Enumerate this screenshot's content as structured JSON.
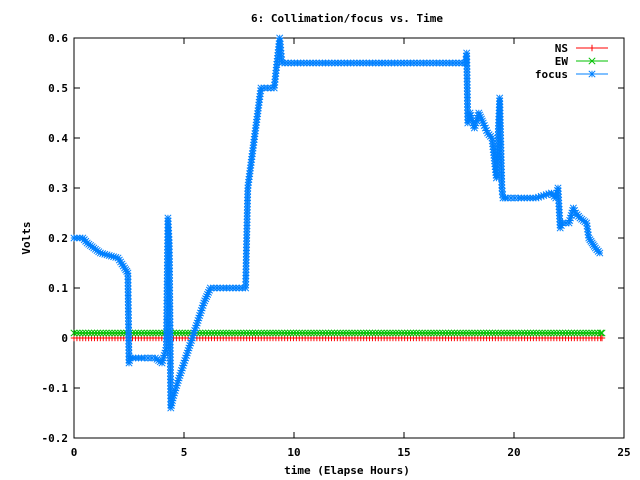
{
  "chart_data": {
    "type": "line",
    "title": "6: Collimation/focus vs. Time",
    "xlabel": "time (Elapse Hours)",
    "ylabel": "Volts",
    "xlim": [
      0,
      25
    ],
    "ylim": [
      -0.2,
      0.6
    ],
    "xticks": [
      "0",
      "5",
      "10",
      "15",
      "20",
      "25"
    ],
    "yticks": [
      "-0.2",
      "-0.1",
      "0",
      "0.1",
      "0.2",
      "0.3",
      "0.4",
      "0.5",
      "0.6"
    ],
    "grid": false,
    "legend_position": "top-right",
    "series": [
      {
        "name": "NS",
        "color": "#ff0000",
        "marker": "plus",
        "x": [
          0,
          24
        ],
        "y": [
          0.0,
          0.0
        ],
        "sample_step": 0.133
      },
      {
        "name": "EW",
        "color": "#00c000",
        "marker": "cross",
        "x": [
          0,
          24
        ],
        "y": [
          0.01,
          0.01
        ],
        "sample_step": 0.133
      },
      {
        "name": "focus",
        "color": "#0080ff",
        "marker": "star",
        "x": [
          0,
          0.4,
          0.6,
          0.9,
          1.2,
          1.6,
          2.0,
          2.3,
          2.45,
          2.5,
          2.55,
          2.8,
          3.2,
          3.7,
          4.0,
          4.2,
          4.27,
          4.33,
          4.4,
          4.5,
          4.7,
          5.0,
          5.3,
          5.6,
          5.9,
          6.2,
          6.5,
          7.8,
          7.9,
          8.5,
          9.1,
          9.35,
          9.45,
          12,
          15,
          17.8,
          17.85,
          17.9,
          18.0,
          18.2,
          18.4,
          18.6,
          18.8,
          19.0,
          19.2,
          19.35,
          19.45,
          19.5,
          19.6,
          19.7,
          20.2,
          21.0,
          21.7,
          21.9,
          22.0,
          22.1,
          22.2,
          22.5,
          22.7,
          22.8,
          23.0,
          23.3,
          23.4,
          23.55,
          23.7,
          23.9
        ],
        "y": [
          0.2,
          0.2,
          0.19,
          0.18,
          0.17,
          0.165,
          0.16,
          0.14,
          0.13,
          -0.05,
          -0.04,
          -0.04,
          -0.04,
          -0.04,
          -0.05,
          -0.02,
          0.24,
          0.19,
          -0.14,
          -0.12,
          -0.09,
          -0.05,
          -0.01,
          0.03,
          0.07,
          0.1,
          0.1,
          0.1,
          0.3,
          0.5,
          0.5,
          0.6,
          0.55,
          0.55,
          0.55,
          0.55,
          0.57,
          0.43,
          0.45,
          0.42,
          0.45,
          0.43,
          0.41,
          0.4,
          0.32,
          0.48,
          0.3,
          0.28,
          0.28,
          0.28,
          0.28,
          0.28,
          0.29,
          0.28,
          0.3,
          0.22,
          0.23,
          0.23,
          0.26,
          0.25,
          0.24,
          0.23,
          0.2,
          0.19,
          0.18,
          0.17
        ]
      }
    ]
  }
}
